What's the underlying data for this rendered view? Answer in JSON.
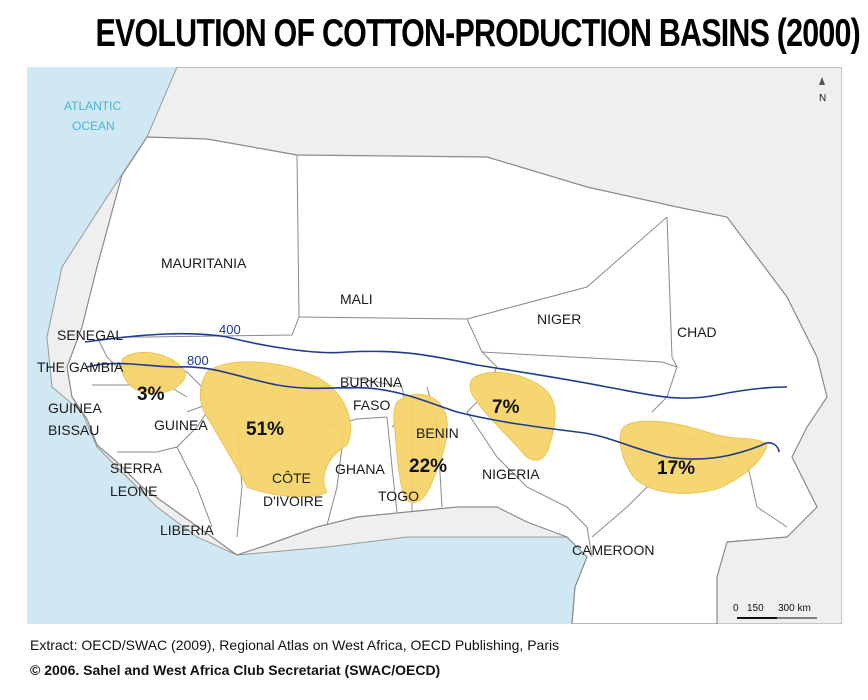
{
  "title": "EVOLUTION OF COTTON-PRODUCTION BASINS (2000)",
  "ocean_label": [
    "ATLANTIC",
    "OCEAN"
  ],
  "countries": {
    "mauritania": "MAURITANIA",
    "mali": "MALI",
    "niger": "NIGER",
    "chad": "CHAD",
    "senegal": "SENEGAL",
    "the_gambia": "THE GAMBIA",
    "guinea_bissau": [
      "GUINEA",
      "BISSAU"
    ],
    "guinea": "GUINEA",
    "burkina_faso": [
      "BURKINA",
      "FASO"
    ],
    "sierra_leone": [
      "SIERRA",
      "LEONE"
    ],
    "cote_divoire": [
      "CÔTE",
      "D'IVOIRE"
    ],
    "ghana": "GHANA",
    "togo": "TOGO",
    "benin": "BENIN",
    "nigeria": "NIGERIA",
    "liberia": "LIBERIA",
    "cameroon": "CAMEROON"
  },
  "isohyets": {
    "upper": "400",
    "lower": "800"
  },
  "basins": {
    "west": "3%",
    "cote_divoire": "51%",
    "benin_togo": "22%",
    "niger_nigeria": "7%",
    "chad_cameroon": "17%"
  },
  "scale": {
    "zero": "0",
    "mid": "150",
    "max": "300 km"
  },
  "north_label": "N",
  "source": "Extract: OECD/SWAC (2009), Regional Atlas on West Africa, OECD Publishing, Paris",
  "copyright": "© 2006. Sahel and West Africa Club Secretariat (SWAC/OECD)",
  "colors": {
    "ocean": "#cfe8f4",
    "land_outside": "#efefef",
    "land_region": "#ffffff",
    "basin": "#f6d36b",
    "isohyet": "#1f3b8c",
    "border": "#8a8a8a"
  }
}
